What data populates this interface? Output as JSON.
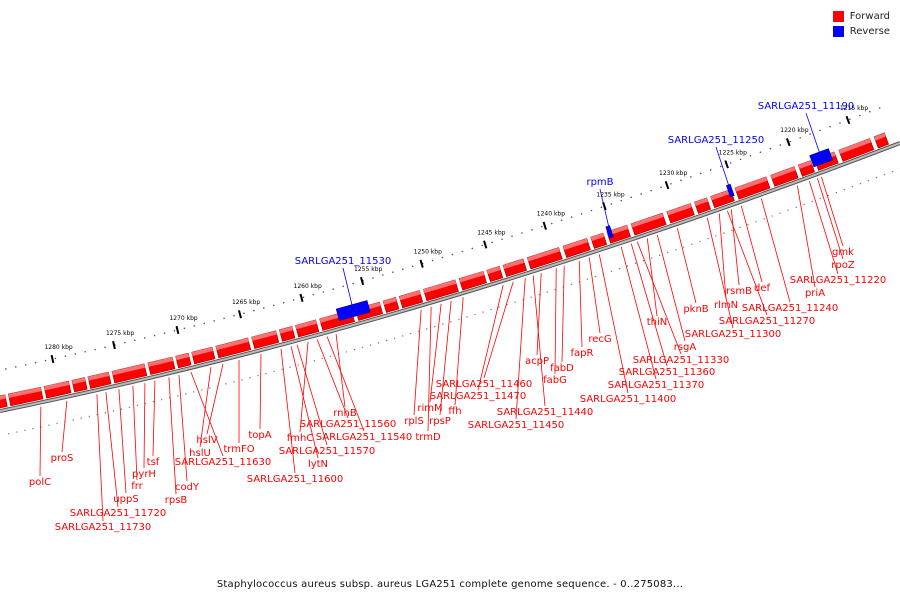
{
  "title": "Staphylococcus aureus subsp. aureus LGA251 complete genome sequence. - 0..275083...",
  "colors": {
    "forward": "#ff0000",
    "reverse": "#0000ff",
    "backbone": "#888888"
  },
  "legend": [
    {
      "label": "Forward",
      "color": "#ff0000"
    },
    {
      "label": "Reverse",
      "color": "#0000ff"
    }
  ],
  "scale": {
    "unit": "kbp",
    "ticks": [
      "1215 kbp",
      "1220 kbp",
      "1225 kbp",
      "1230 kbp",
      "1235 kbp",
      "1240 kbp",
      "1245 kbp",
      "1250 kbp",
      "1255 kbp",
      "1260 kbp",
      "1265 kbp",
      "1270 kbp",
      "1275 kbp",
      "1280 kbp"
    ]
  },
  "reverse_genes": [
    "SARLGA251_11190",
    "SARLGA251_11250",
    "rpmB",
    "SARLGA251_11530"
  ],
  "forward_genes": [
    "gmk",
    "rpoZ",
    "SARLGA251_11220",
    "priA",
    "SARLGA251_11240",
    "def",
    "rsmB",
    "SARLGA251_11270",
    "rlmN",
    "SARLGA251_11300",
    "pknB",
    "rsgA",
    "thiN",
    "SARLGA251_11330",
    "SARLGA251_11360",
    "SARLGA251_11370",
    "SARLGA251_11400",
    "recG",
    "fapR",
    "fabD",
    "fabG",
    "acpP",
    "SARLGA251_11440",
    "SARLGA251_11450",
    "SARLGA251_11460",
    "SARLGA251_11470",
    "ffh",
    "rpsP",
    "rimM",
    "trmD",
    "rplS",
    "rnhB",
    "SARLGA251_11540",
    "SARLGA251_11560",
    "fmhC",
    "SARLGA251_11570",
    "lytN",
    "SARLGA251_11600",
    "topA",
    "trmFO",
    "hslV",
    "hslU",
    "SARLGA251_11630",
    "codY",
    "rpsB",
    "tsf",
    "pyrH",
    "frr",
    "uppS",
    "SARLGA251_11720",
    "SARLGA251_11730",
    "proS",
    "polC"
  ]
}
